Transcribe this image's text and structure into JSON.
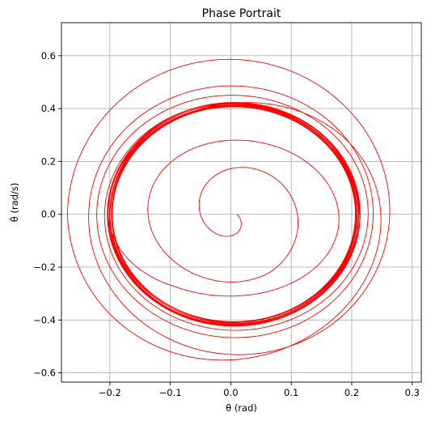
{
  "chart_data": {
    "type": "line",
    "title": "Phase Portrait",
    "xlabel": "θ (rad)",
    "ylabel": "θ̇ (rad/s)",
    "xlim": [
      -0.28,
      0.315
    ],
    "ylim": [
      -0.635,
      0.725
    ],
    "xticks": [
      -0.2,
      -0.1,
      0.0,
      0.1,
      0.2,
      0.3
    ],
    "yticks": [
      -0.6,
      -0.4,
      -0.2,
      0.0,
      0.2,
      0.4,
      0.6
    ],
    "xtick_labels": [
      "−0.2",
      "−0.1",
      "0.0",
      "0.1",
      "0.2",
      "0.3"
    ],
    "ytick_labels": [
      "−0.6",
      "−0.4",
      "−0.2",
      "0.0",
      "0.2",
      "0.4",
      "0.6"
    ],
    "grid": true,
    "series": [
      {
        "color": "#ff0000",
        "trajectory": {
          "start": [
            0.105,
            0.0
          ],
          "initial_amplitude": [
            0.005,
            0.03
          ],
          "amplitude_stages": [
            [
              0.12,
              0.25
            ],
            [
              0.2,
              0.32
            ],
            [
              0.27,
              0.6
            ],
            [
              0.24,
              0.5
            ],
            [
              0.22,
              0.44
            ],
            [
              0.205,
              0.415
            ]
          ],
          "final_amplitude": [
            0.205,
            0.415
          ],
          "center": [
            0.005,
            0.0
          ],
          "cycles": 20
        }
      }
    ]
  }
}
